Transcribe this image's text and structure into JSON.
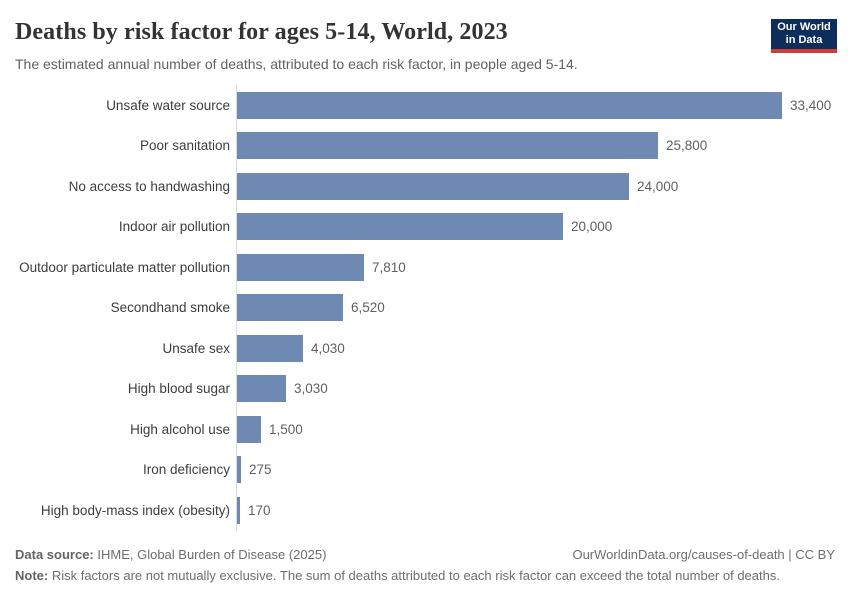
{
  "header": {
    "title": "Deaths by risk factor for ages 5-14, World, 2023",
    "subtitle": "The estimated annual number of deaths, attributed to each risk factor, in people aged 5-14.",
    "logo": {
      "line1": "Our World",
      "line2": "in Data"
    }
  },
  "chart_data": {
    "type": "bar",
    "orientation": "horizontal",
    "title": "Deaths by risk factor for ages 5-14, World, 2023",
    "subtitle": "The estimated annual number of deaths, attributed to each risk factor, in people aged 5-14.",
    "categories": [
      "Unsafe water source",
      "Poor sanitation",
      "No access to handwashing",
      "Indoor air pollution",
      "Outdoor particulate matter pollution",
      "Secondhand smoke",
      "Unsafe sex",
      "High blood sugar",
      "High alcohol use",
      "Iron deficiency",
      "High body-mass index (obesity)"
    ],
    "values": [
      33400,
      25800,
      24000,
      20000,
      7810,
      6520,
      4030,
      3030,
      1500,
      275,
      170
    ],
    "value_labels": [
      "33,400",
      "25,800",
      "24,000",
      "20,000",
      "7,810",
      "6,520",
      "4,030",
      "3,030",
      "1,500",
      "275",
      "170"
    ],
    "xlim": [
      0,
      33400
    ],
    "grid": false,
    "legend": "none",
    "bar_color": "#6e89b2",
    "axis_line_color": "#dcdcdc"
  },
  "footer": {
    "source_label": "Data source:",
    "source_text": " IHME, Global Burden of Disease (2025)",
    "link_text": "OurWorldinData.org/causes-of-death | CC BY",
    "note_label": "Note:",
    "note_text": " Risk factors are not mutually exclusive. The sum of deaths attributed to each risk factor can exceed the total number of deaths."
  },
  "colors": {
    "logo_background": "#0d2e5a",
    "logo_stripe": "#d73a34",
    "title_text": "#333333",
    "subtitle_text": "#616161",
    "label_text": "#3d3d3d",
    "value_text": "#606060",
    "footer_text": "#6e6e6e"
  }
}
